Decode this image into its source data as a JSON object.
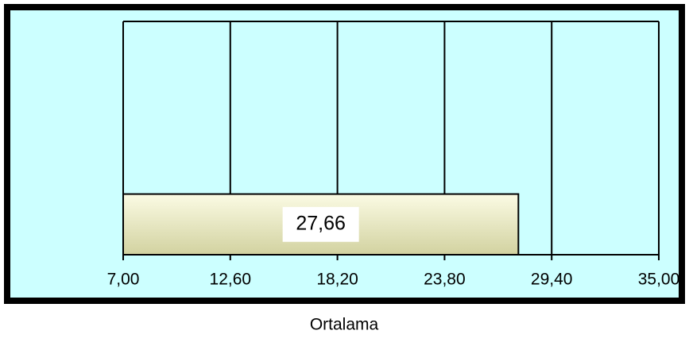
{
  "chart_data": {
    "type": "hbar",
    "categories": [
      null
    ],
    "values": [
      27.66
    ],
    "value_labels": [
      "27,66"
    ],
    "xlabel": "Ortalama",
    "xlim": [
      7,
      35
    ],
    "xticks": [
      {
        "value": 7,
        "label": "7,00"
      },
      {
        "value": 12.6,
        "label": "12,60"
      },
      {
        "value": 18.2,
        "label": "18,20"
      },
      {
        "value": 23.8,
        "label": "23,80"
      },
      {
        "value": 29.4,
        "label": "29,40"
      },
      {
        "value": 35,
        "label": "35,00"
      }
    ],
    "grid": true,
    "color": "#eeeec4"
  }
}
